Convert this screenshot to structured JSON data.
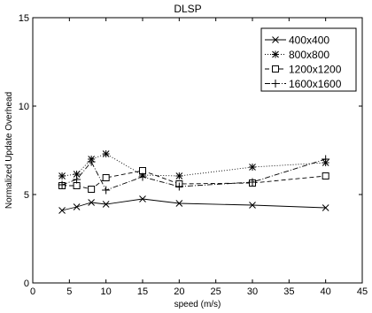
{
  "chart_data": {
    "type": "line",
    "title": "DLSP",
    "xlabel": "speed (m/s)",
    "ylabel": "Normalized Update Overhead",
    "xlim": [
      0,
      45
    ],
    "ylim": [
      0,
      15
    ],
    "xticks": [
      0,
      5,
      10,
      15,
      20,
      25,
      30,
      35,
      40,
      45
    ],
    "yticks": [
      0,
      5,
      10,
      15
    ],
    "grid": false,
    "legend_position": "top-right",
    "x": [
      4,
      6,
      8,
      10,
      15,
      20,
      30,
      40
    ],
    "series": [
      {
        "name": "400x400",
        "marker": "x",
        "line": "solid",
        "values": [
          4.1,
          4.3,
          4.55,
          4.45,
          4.75,
          4.5,
          4.4,
          4.25
        ]
      },
      {
        "name": "800x800",
        "marker": "star",
        "line": "dotted",
        "values": [
          6.05,
          6.15,
          7.0,
          7.3,
          6.1,
          6.05,
          6.55,
          6.8
        ]
      },
      {
        "name": "1200x1200",
        "marker": "square",
        "line": "dashed",
        "values": [
          5.5,
          5.5,
          5.3,
          5.95,
          6.35,
          5.6,
          5.65,
          6.05
        ]
      },
      {
        "name": "1600x1600",
        "marker": "plus",
        "line": "dashdot",
        "values": [
          5.55,
          5.85,
          6.85,
          5.25,
          6.0,
          5.45,
          5.7,
          7.0
        ]
      }
    ]
  }
}
